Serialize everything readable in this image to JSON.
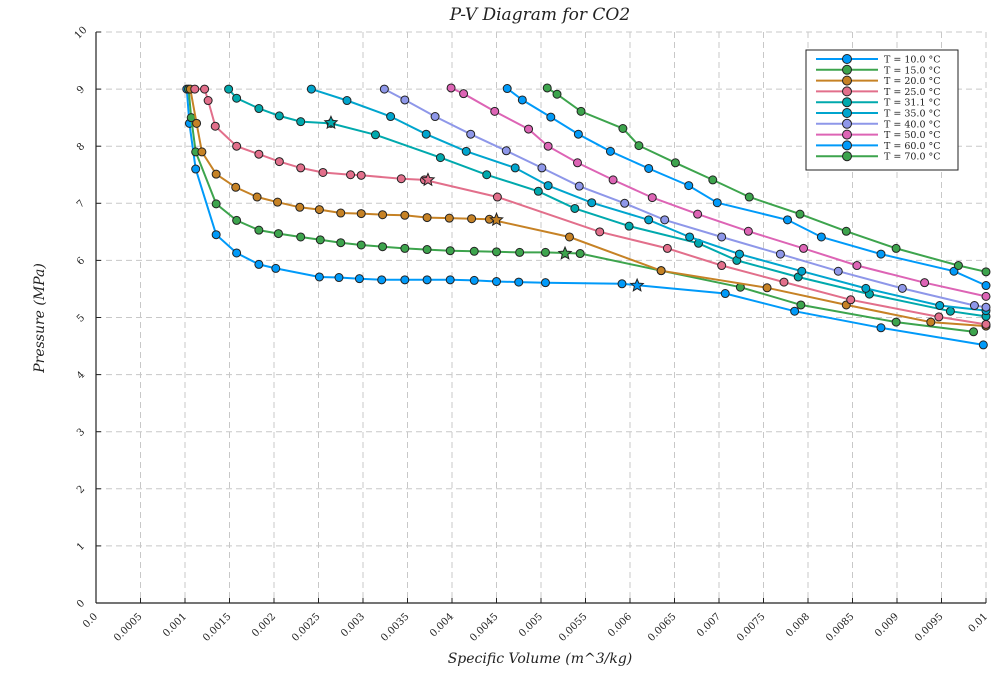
{
  "chart_data": {
    "type": "line",
    "title": "P-V Diagram for CO2",
    "xlabel": "Specific Volume (m^3/kg)",
    "ylabel": "Pressure (MPa)",
    "xlim": [
      0.0,
      0.01
    ],
    "ylim": [
      0,
      10
    ],
    "x_ticks": [
      "0.0",
      "0.0005",
      "0.001",
      "0.0015",
      "0.002",
      "0.0025",
      "0.003",
      "0.0035",
      "0.004",
      "0.0045",
      "0.005",
      "0.0055",
      "0.006",
      "0.0065",
      "0.007",
      "0.0075",
      "0.008",
      "0.0085",
      "0.009",
      "0.0095",
      "0.01"
    ],
    "y_ticks": [
      "0",
      "1",
      "2",
      "3",
      "4",
      "5",
      "6",
      "7",
      "8",
      "9",
      "10"
    ],
    "grid": true,
    "legend_position": "top-right",
    "series": [
      {
        "name": "T = 10.0 °C",
        "color": "#009af9",
        "points": [
          [
            0.00102,
            9.0
          ],
          [
            0.00105,
            8.4
          ],
          [
            0.00112,
            7.6
          ],
          [
            0.00135,
            6.45
          ],
          [
            0.00158,
            6.13
          ],
          [
            0.00183,
            5.93
          ],
          [
            0.00202,
            5.86
          ],
          [
            0.00251,
            5.71
          ],
          [
            0.00273,
            5.7
          ],
          [
            0.00296,
            5.68
          ],
          [
            0.00321,
            5.66
          ],
          [
            0.00347,
            5.66
          ],
          [
            0.00372,
            5.66
          ],
          [
            0.00398,
            5.66
          ],
          [
            0.00425,
            5.65
          ],
          [
            0.0045,
            5.63
          ],
          [
            0.00475,
            5.62
          ],
          [
            0.00505,
            5.61
          ],
          [
            0.00591,
            5.59
          ],
          [
            0.00707,
            5.42
          ],
          [
            0.00785,
            5.11
          ],
          [
            0.00882,
            4.82
          ],
          [
            0.00997,
            4.52
          ]
        ],
        "critical": [
          0.00608,
          5.56
        ]
      },
      {
        "name": "T = 15.0 °C",
        "color": "#3da44d",
        "points": [
          [
            0.00104,
            9.0
          ],
          [
            0.00107,
            8.5
          ],
          [
            0.00112,
            7.9
          ],
          [
            0.00135,
            6.99
          ],
          [
            0.00158,
            6.7
          ],
          [
            0.00183,
            6.53
          ],
          [
            0.00205,
            6.47
          ],
          [
            0.0023,
            6.41
          ],
          [
            0.00252,
            6.36
          ],
          [
            0.00275,
            6.31
          ],
          [
            0.00298,
            6.27
          ],
          [
            0.00322,
            6.24
          ],
          [
            0.00347,
            6.21
          ],
          [
            0.00372,
            6.19
          ],
          [
            0.00398,
            6.17
          ],
          [
            0.00425,
            6.16
          ],
          [
            0.0045,
            6.15
          ],
          [
            0.00476,
            6.14
          ],
          [
            0.00505,
            6.14
          ],
          [
            0.00544,
            6.12
          ],
          [
            0.00635,
            5.82
          ],
          [
            0.00724,
            5.53
          ],
          [
            0.00792,
            5.22
          ],
          [
            0.00899,
            4.92
          ],
          [
            0.00986,
            4.75
          ]
        ],
        "critical": [
          0.00527,
          6.12
        ]
      },
      {
        "name": "T = 20.0 °C",
        "color": "#c68225",
        "points": [
          [
            0.00106,
            9.0
          ],
          [
            0.00113,
            8.4
          ],
          [
            0.00119,
            7.9
          ],
          [
            0.00135,
            7.51
          ],
          [
            0.00157,
            7.28
          ],
          [
            0.00181,
            7.11
          ],
          [
            0.00204,
            7.02
          ],
          [
            0.00229,
            6.93
          ],
          [
            0.00251,
            6.89
          ],
          [
            0.00275,
            6.83
          ],
          [
            0.00298,
            6.82
          ],
          [
            0.00322,
            6.8
          ],
          [
            0.00347,
            6.79
          ],
          [
            0.00372,
            6.75
          ],
          [
            0.00397,
            6.74
          ],
          [
            0.00422,
            6.73
          ],
          [
            0.00442,
            6.72
          ],
          [
            0.00532,
            6.41
          ],
          [
            0.00635,
            5.82
          ],
          [
            0.00754,
            5.52
          ],
          [
            0.00843,
            5.22
          ],
          [
            0.00938,
            4.92
          ],
          [
            0.01,
            4.85
          ]
        ],
        "critical": [
          0.0045,
          6.71
        ]
      },
      {
        "name": "T = 25.0 °C",
        "color": "#e26f8b",
        "points": [
          [
            0.00111,
            9.0
          ],
          [
            0.00122,
            9.0
          ],
          [
            0.00126,
            8.8
          ],
          [
            0.00134,
            8.35
          ],
          [
            0.00158,
            8.0
          ],
          [
            0.00183,
            7.86
          ],
          [
            0.00206,
            7.73
          ],
          [
            0.0023,
            7.62
          ],
          [
            0.00255,
            7.54
          ],
          [
            0.00286,
            7.5
          ],
          [
            0.00298,
            7.49
          ],
          [
            0.00343,
            7.43
          ],
          [
            0.00369,
            7.41
          ],
          [
            0.00451,
            7.11
          ],
          [
            0.00566,
            6.5
          ],
          [
            0.00642,
            6.21
          ],
          [
            0.00703,
            5.91
          ],
          [
            0.00773,
            5.62
          ],
          [
            0.00848,
            5.31
          ],
          [
            0.00947,
            5.01
          ],
          [
            0.01,
            4.88
          ]
        ],
        "critical": [
          0.00373,
          7.41
        ]
      },
      {
        "name": "T = 31.1 °C",
        "color": "#00a9ad",
        "points": [
          [
            0.00149,
            9.0
          ],
          [
            0.00158,
            8.84
          ],
          [
            0.00183,
            8.66
          ],
          [
            0.00206,
            8.53
          ],
          [
            0.0023,
            8.43
          ],
          [
            0.00264,
            8.4
          ],
          [
            0.00314,
            8.2
          ],
          [
            0.00387,
            7.8
          ],
          [
            0.00439,
            7.5
          ],
          [
            0.00497,
            7.21
          ],
          [
            0.00538,
            6.91
          ],
          [
            0.00599,
            6.6
          ],
          [
            0.00677,
            6.3
          ],
          [
            0.0072,
            6.0
          ],
          [
            0.00789,
            5.71
          ],
          [
            0.00869,
            5.41
          ],
          [
            0.0096,
            5.11
          ],
          [
            0.01,
            5.02
          ]
        ],
        "critical": [
          0.00264,
          8.41
        ]
      },
      {
        "name": "T = 35.0 °C",
        "color": "#00a5ce",
        "points": [
          [
            0.00242,
            9.0
          ],
          [
            0.00282,
            8.8
          ],
          [
            0.00331,
            8.52
          ],
          [
            0.00371,
            8.21
          ],
          [
            0.00416,
            7.91
          ],
          [
            0.00471,
            7.62
          ],
          [
            0.00508,
            7.31
          ],
          [
            0.00557,
            7.01
          ],
          [
            0.00621,
            6.71
          ],
          [
            0.00667,
            6.41
          ],
          [
            0.00723,
            6.11
          ],
          [
            0.00793,
            5.81
          ],
          [
            0.00865,
            5.51
          ],
          [
            0.00948,
            5.21
          ],
          [
            0.01,
            5.12
          ]
        ],
        "critical": null
      },
      {
        "name": "T = 40.0 °C",
        "color": "#8e97e9",
        "points": [
          [
            0.00324,
            9.0
          ],
          [
            0.00347,
            8.81
          ],
          [
            0.00381,
            8.52
          ],
          [
            0.00421,
            8.21
          ],
          [
            0.00461,
            7.92
          ],
          [
            0.00501,
            7.62
          ],
          [
            0.00543,
            7.3
          ],
          [
            0.00594,
            7.0
          ],
          [
            0.00639,
            6.71
          ],
          [
            0.00703,
            6.41
          ],
          [
            0.00769,
            6.11
          ],
          [
            0.00834,
            5.81
          ],
          [
            0.00906,
            5.51
          ],
          [
            0.00987,
            5.21
          ],
          [
            0.01,
            5.18
          ]
        ],
        "critical": null
      },
      {
        "name": "T = 50.0 °C",
        "color": "#dd64b5",
        "points": [
          [
            0.00399,
            9.02
          ],
          [
            0.00413,
            8.92
          ],
          [
            0.00448,
            8.61
          ],
          [
            0.00486,
            8.3
          ],
          [
            0.00508,
            8.0
          ],
          [
            0.00541,
            7.71
          ],
          [
            0.00581,
            7.41
          ],
          [
            0.00625,
            7.1
          ],
          [
            0.00676,
            6.81
          ],
          [
            0.00733,
            6.51
          ],
          [
            0.00795,
            6.21
          ],
          [
            0.00855,
            5.91
          ],
          [
            0.00931,
            5.61
          ],
          [
            0.01,
            5.37
          ]
        ],
        "critical": null
      },
      {
        "name": "T = 60.0 °C",
        "color": "#009af9",
        "points": [
          [
            0.00462,
            9.01
          ],
          [
            0.00479,
            8.81
          ],
          [
            0.00511,
            8.51
          ],
          [
            0.00542,
            8.21
          ],
          [
            0.00578,
            7.91
          ],
          [
            0.00621,
            7.61
          ],
          [
            0.00666,
            7.31
          ],
          [
            0.00698,
            7.01
          ],
          [
            0.00777,
            6.71
          ],
          [
            0.00815,
            6.41
          ],
          [
            0.00882,
            6.11
          ],
          [
            0.00964,
            5.81
          ],
          [
            0.01,
            5.56
          ]
        ],
        "critical": null
      },
      {
        "name": "T = 70.0 °C",
        "color": "#3da44d",
        "points": [
          [
            0.00507,
            9.02
          ],
          [
            0.00518,
            8.91
          ],
          [
            0.00545,
            8.61
          ],
          [
            0.00592,
            8.31
          ],
          [
            0.0061,
            8.01
          ],
          [
            0.00651,
            7.71
          ],
          [
            0.00693,
            7.41
          ],
          [
            0.00734,
            7.11
          ],
          [
            0.00791,
            6.81
          ],
          [
            0.00843,
            6.51
          ],
          [
            0.00899,
            6.21
          ],
          [
            0.00969,
            5.91
          ],
          [
            0.01,
            5.8
          ]
        ],
        "critical": null
      }
    ]
  }
}
